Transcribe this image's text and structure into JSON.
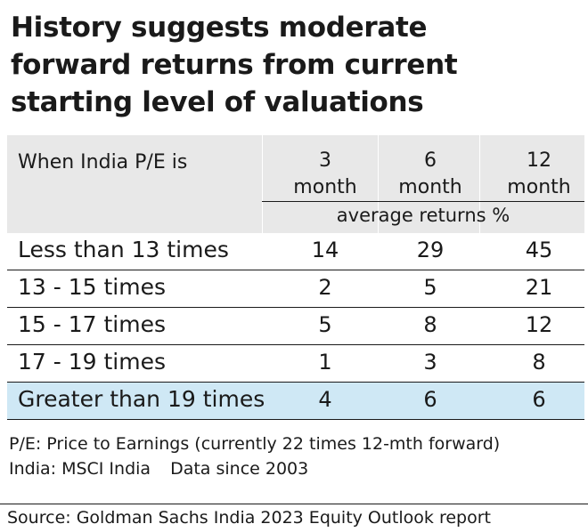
{
  "title_lines": [
    "History suggests moderate",
    "forward returns from current",
    "starting level of valuations"
  ],
  "chart_data": {
    "type": "table",
    "title": "History suggests moderate forward returns from current starting level of valuations",
    "row_header": "When India P/E is",
    "columns": [
      {
        "line1": "3",
        "line2": "month"
      },
      {
        "line1": "6",
        "line2": "month"
      },
      {
        "line1": "12",
        "line2": "month"
      }
    ],
    "subheader": "average returns %",
    "rows": [
      {
        "label": "Less than 13 times",
        "values": [
          14,
          29,
          45
        ]
      },
      {
        "label": "13 - 15 times",
        "values": [
          2,
          5,
          21
        ]
      },
      {
        "label": "15 - 17 times",
        "values": [
          5,
          8,
          12
        ]
      },
      {
        "label": "17 - 19 times",
        "values": [
          1,
          3,
          8
        ]
      },
      {
        "label": "Greater than 19 times",
        "values": [
          4,
          6,
          6
        ]
      }
    ],
    "highlight_row": 4
  },
  "notes": {
    "line1": "P/E: Price to Earnings (currently 22 times 12-mth forward)",
    "line2a": "India: MSCI India",
    "line2b": "Data since 2003"
  },
  "source": "Source: Goldman Sachs India 2023 Equity Outlook report",
  "colors": {
    "header_bg": "#e8e8e8",
    "highlight_bg": "#cfe8f5",
    "text": "#1a1a1a"
  }
}
